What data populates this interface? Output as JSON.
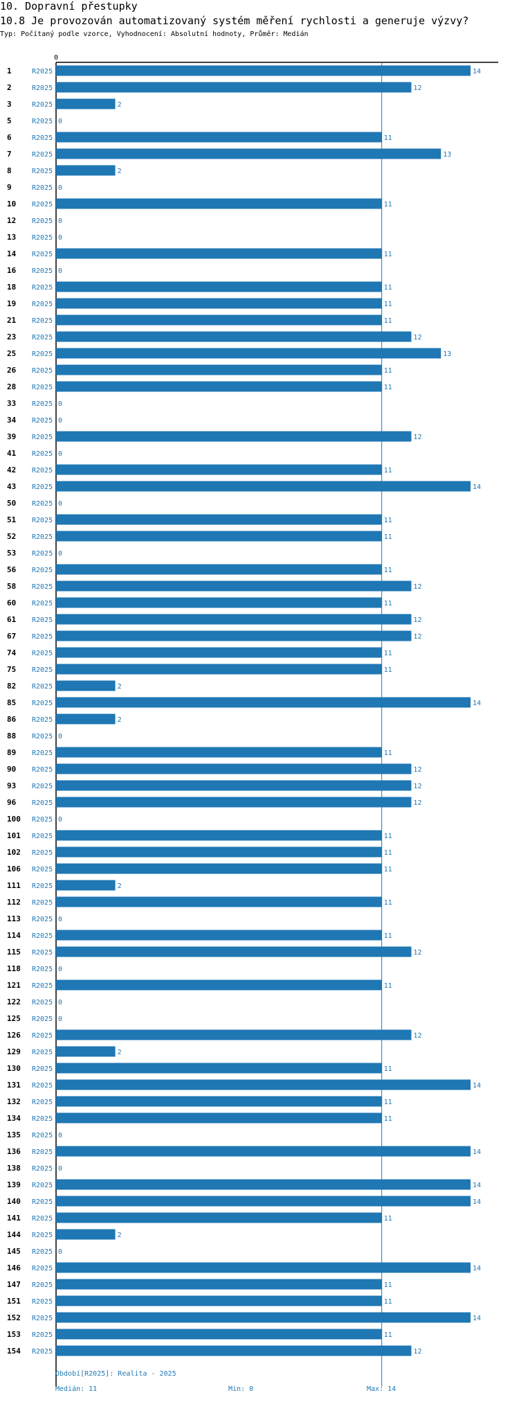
{
  "header": {
    "section": "10. Dopravní přestupky",
    "question": "10.8 Je provozován automatizovaný systém měření rychlosti a generuje výzvy?",
    "meta": "Typ: Počítaný podle vzorce, Vyhodnocení: Absolutní hodnoty, Průměr: Medián"
  },
  "footer": {
    "period": "Období[R2025]: Realita - 2025",
    "median": "Medián: 11",
    "min": "Min: 0",
    "max": "Max: 14"
  },
  "colors": {
    "bar": "#1f77b4",
    "axis": "#000000",
    "median_line": "#1f77b4"
  },
  "chart_data": {
    "type": "bar",
    "orientation": "horizontal",
    "series_label": "R2025",
    "x_tick_labels": [
      "0"
    ],
    "xlim": [
      0,
      14
    ],
    "median": 11,
    "categories": [
      "1",
      "2",
      "3",
      "5",
      "6",
      "7",
      "8",
      "9",
      "10",
      "12",
      "13",
      "14",
      "16",
      "18",
      "19",
      "21",
      "23",
      "25",
      "26",
      "28",
      "33",
      "34",
      "39",
      "41",
      "42",
      "43",
      "50",
      "51",
      "52",
      "53",
      "56",
      "58",
      "60",
      "61",
      "67",
      "74",
      "75",
      "82",
      "85",
      "86",
      "88",
      "89",
      "90",
      "93",
      "96",
      "100",
      "101",
      "102",
      "106",
      "111",
      "112",
      "113",
      "114",
      "115",
      "118",
      "121",
      "122",
      "125",
      "126",
      "129",
      "130",
      "131",
      "132",
      "134",
      "135",
      "136",
      "138",
      "139",
      "140",
      "141",
      "144",
      "145",
      "146",
      "147",
      "151",
      "152",
      "153",
      "154"
    ],
    "values": [
      14,
      12,
      2,
      0,
      11,
      13,
      2,
      0,
      11,
      0,
      0,
      11,
      0,
      11,
      11,
      11,
      12,
      13,
      11,
      11,
      0,
      0,
      12,
      0,
      11,
      14,
      0,
      11,
      11,
      0,
      11,
      12,
      11,
      12,
      12,
      11,
      11,
      2,
      14,
      2,
      0,
      11,
      12,
      12,
      12,
      0,
      11,
      11,
      11,
      2,
      11,
      0,
      11,
      12,
      0,
      11,
      0,
      0,
      12,
      2,
      11,
      14,
      11,
      11,
      0,
      14,
      0,
      14,
      14,
      11,
      2,
      0,
      14,
      11,
      11,
      14,
      11,
      12
    ]
  }
}
